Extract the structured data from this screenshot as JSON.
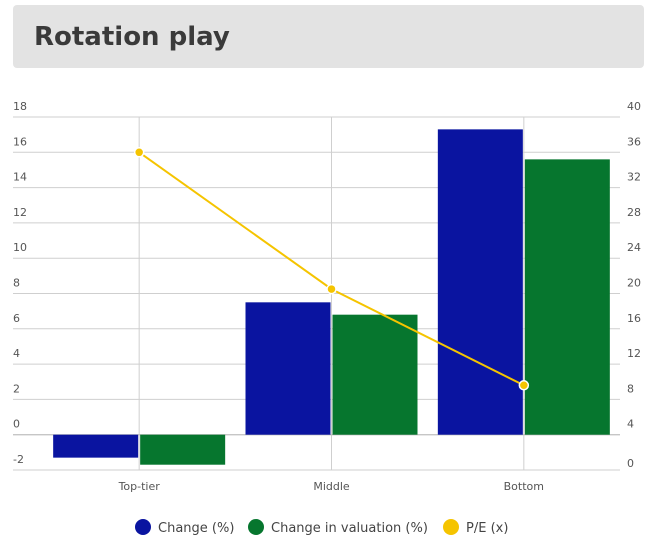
{
  "title": "Rotation play",
  "chart_data": {
    "type": "bar",
    "categories": [
      "Top-tier",
      "Middle",
      "Bottom"
    ],
    "series": [
      {
        "name": "Change (%)",
        "type": "bar",
        "axis": "left",
        "color": "#0a14a0",
        "values": [
          -1.3,
          7.5,
          17.3
        ]
      },
      {
        "name": "Change in valuation (%)",
        "type": "bar",
        "axis": "left",
        "color": "#06762e",
        "values": [
          -1.7,
          6.8,
          15.6
        ]
      },
      {
        "name": "P/E (x)",
        "type": "line",
        "axis": "right",
        "color": "#f5c400",
        "values": [
          36,
          20.5,
          9.6
        ]
      }
    ],
    "y_left": {
      "min": -2,
      "max": 18,
      "ticks": [
        "18",
        "16",
        "14",
        "12",
        "10",
        "8",
        "6",
        "4",
        "2",
        "0",
        "-2"
      ]
    },
    "y_right": {
      "min": 0,
      "max": 40,
      "ticks": [
        "40",
        "36",
        "32",
        "28",
        "24",
        "20",
        "16",
        "12",
        "8",
        "4",
        "0"
      ]
    },
    "grid": true,
    "legend_position": "bottom"
  }
}
